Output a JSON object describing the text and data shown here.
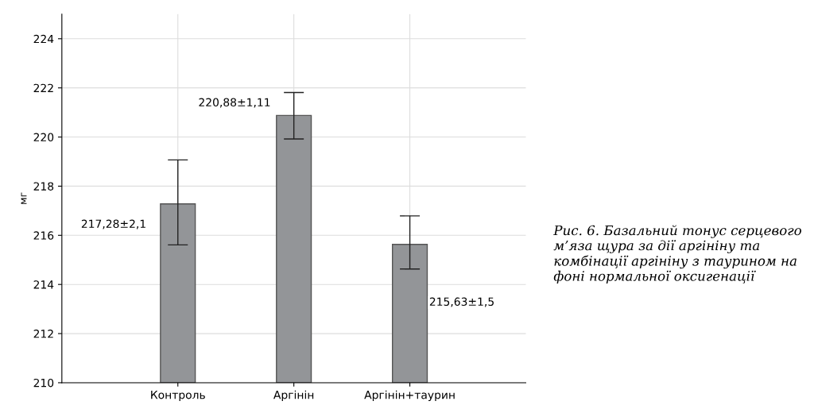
{
  "chart_data": {
    "type": "bar",
    "ylabel": "мг",
    "categories": [
      "Контроль",
      "Аргінін",
      "Аргінін+таурин"
    ],
    "values": [
      217.28,
      220.88,
      215.63
    ],
    "errors": [
      [
        215.61,
        219.07
      ],
      [
        219.92,
        221.81
      ],
      [
        214.63,
        216.79
      ]
    ],
    "color": "#939598",
    "ylim": [
      210,
      225
    ],
    "yticks": [
      210,
      212,
      214,
      216,
      218,
      220,
      222,
      224
    ],
    "grid": true,
    "annotations": [
      "217,28±2,1",
      "220,88±1,11",
      "215,63±1,5",
      "Рис. 6. Базальний тонус серцевого м’яза щура за дії аргініну та комбінації аргініну з таурином на фоні нормальної оксигенації"
    ]
  }
}
